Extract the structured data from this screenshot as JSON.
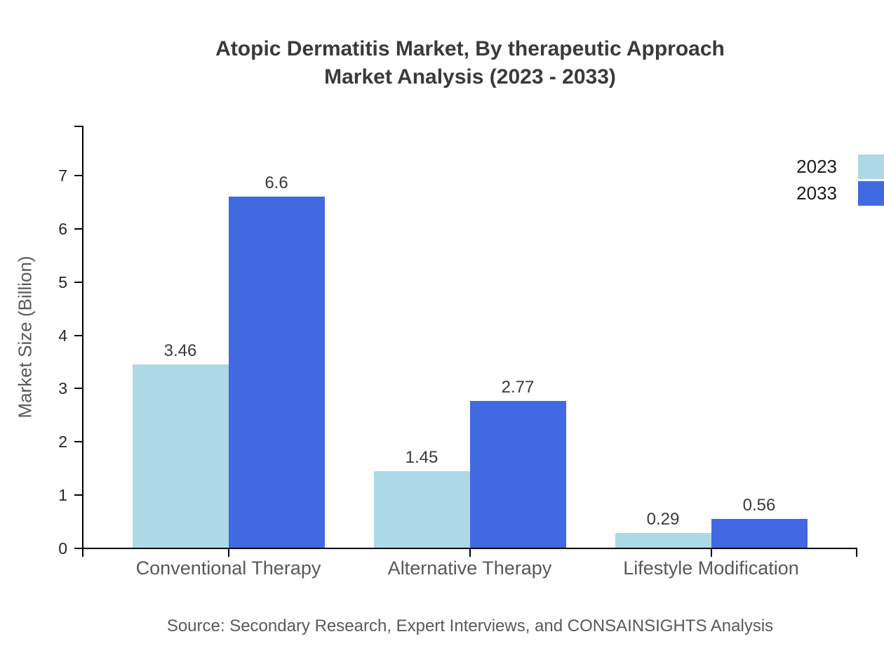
{
  "header": {
    "title_line1": "Atopic Dermatitis Market, By therapeutic Approach",
    "title_line2": "Market Analysis (2023 - 2033)"
  },
  "footer": {
    "source": "Source: Secondary Research, Expert Interviews, and CONSAINSIGHTS Analysis"
  },
  "chart_data": {
    "type": "bar",
    "title": "Atopic Dermatitis Market, By therapeutic Approach Market Analysis (2023 - 2033)",
    "categories": [
      "Conventional Therapy",
      "Alternative Therapy",
      "Lifestyle Modification"
    ],
    "series": [
      {
        "name": "2023",
        "color": "#ADD8E6",
        "values": [
          3.46,
          1.45,
          0.29
        ]
      },
      {
        "name": "2033",
        "color": "#4169E1",
        "values": [
          6.6,
          2.77,
          0.56
        ]
      }
    ],
    "xlabel": "",
    "ylabel": "Market Size (Billion)",
    "ylim": [
      0,
      7.9
    ],
    "yticks": [
      0,
      1,
      2,
      3,
      4,
      5,
      6,
      7
    ],
    "grid": false,
    "value_labels": true,
    "legend_position": "upper-right-outside",
    "axis_color": "#000000",
    "source": "Source: Secondary Research, Expert Interviews, and CONSAINSIGHTS Analysis"
  }
}
